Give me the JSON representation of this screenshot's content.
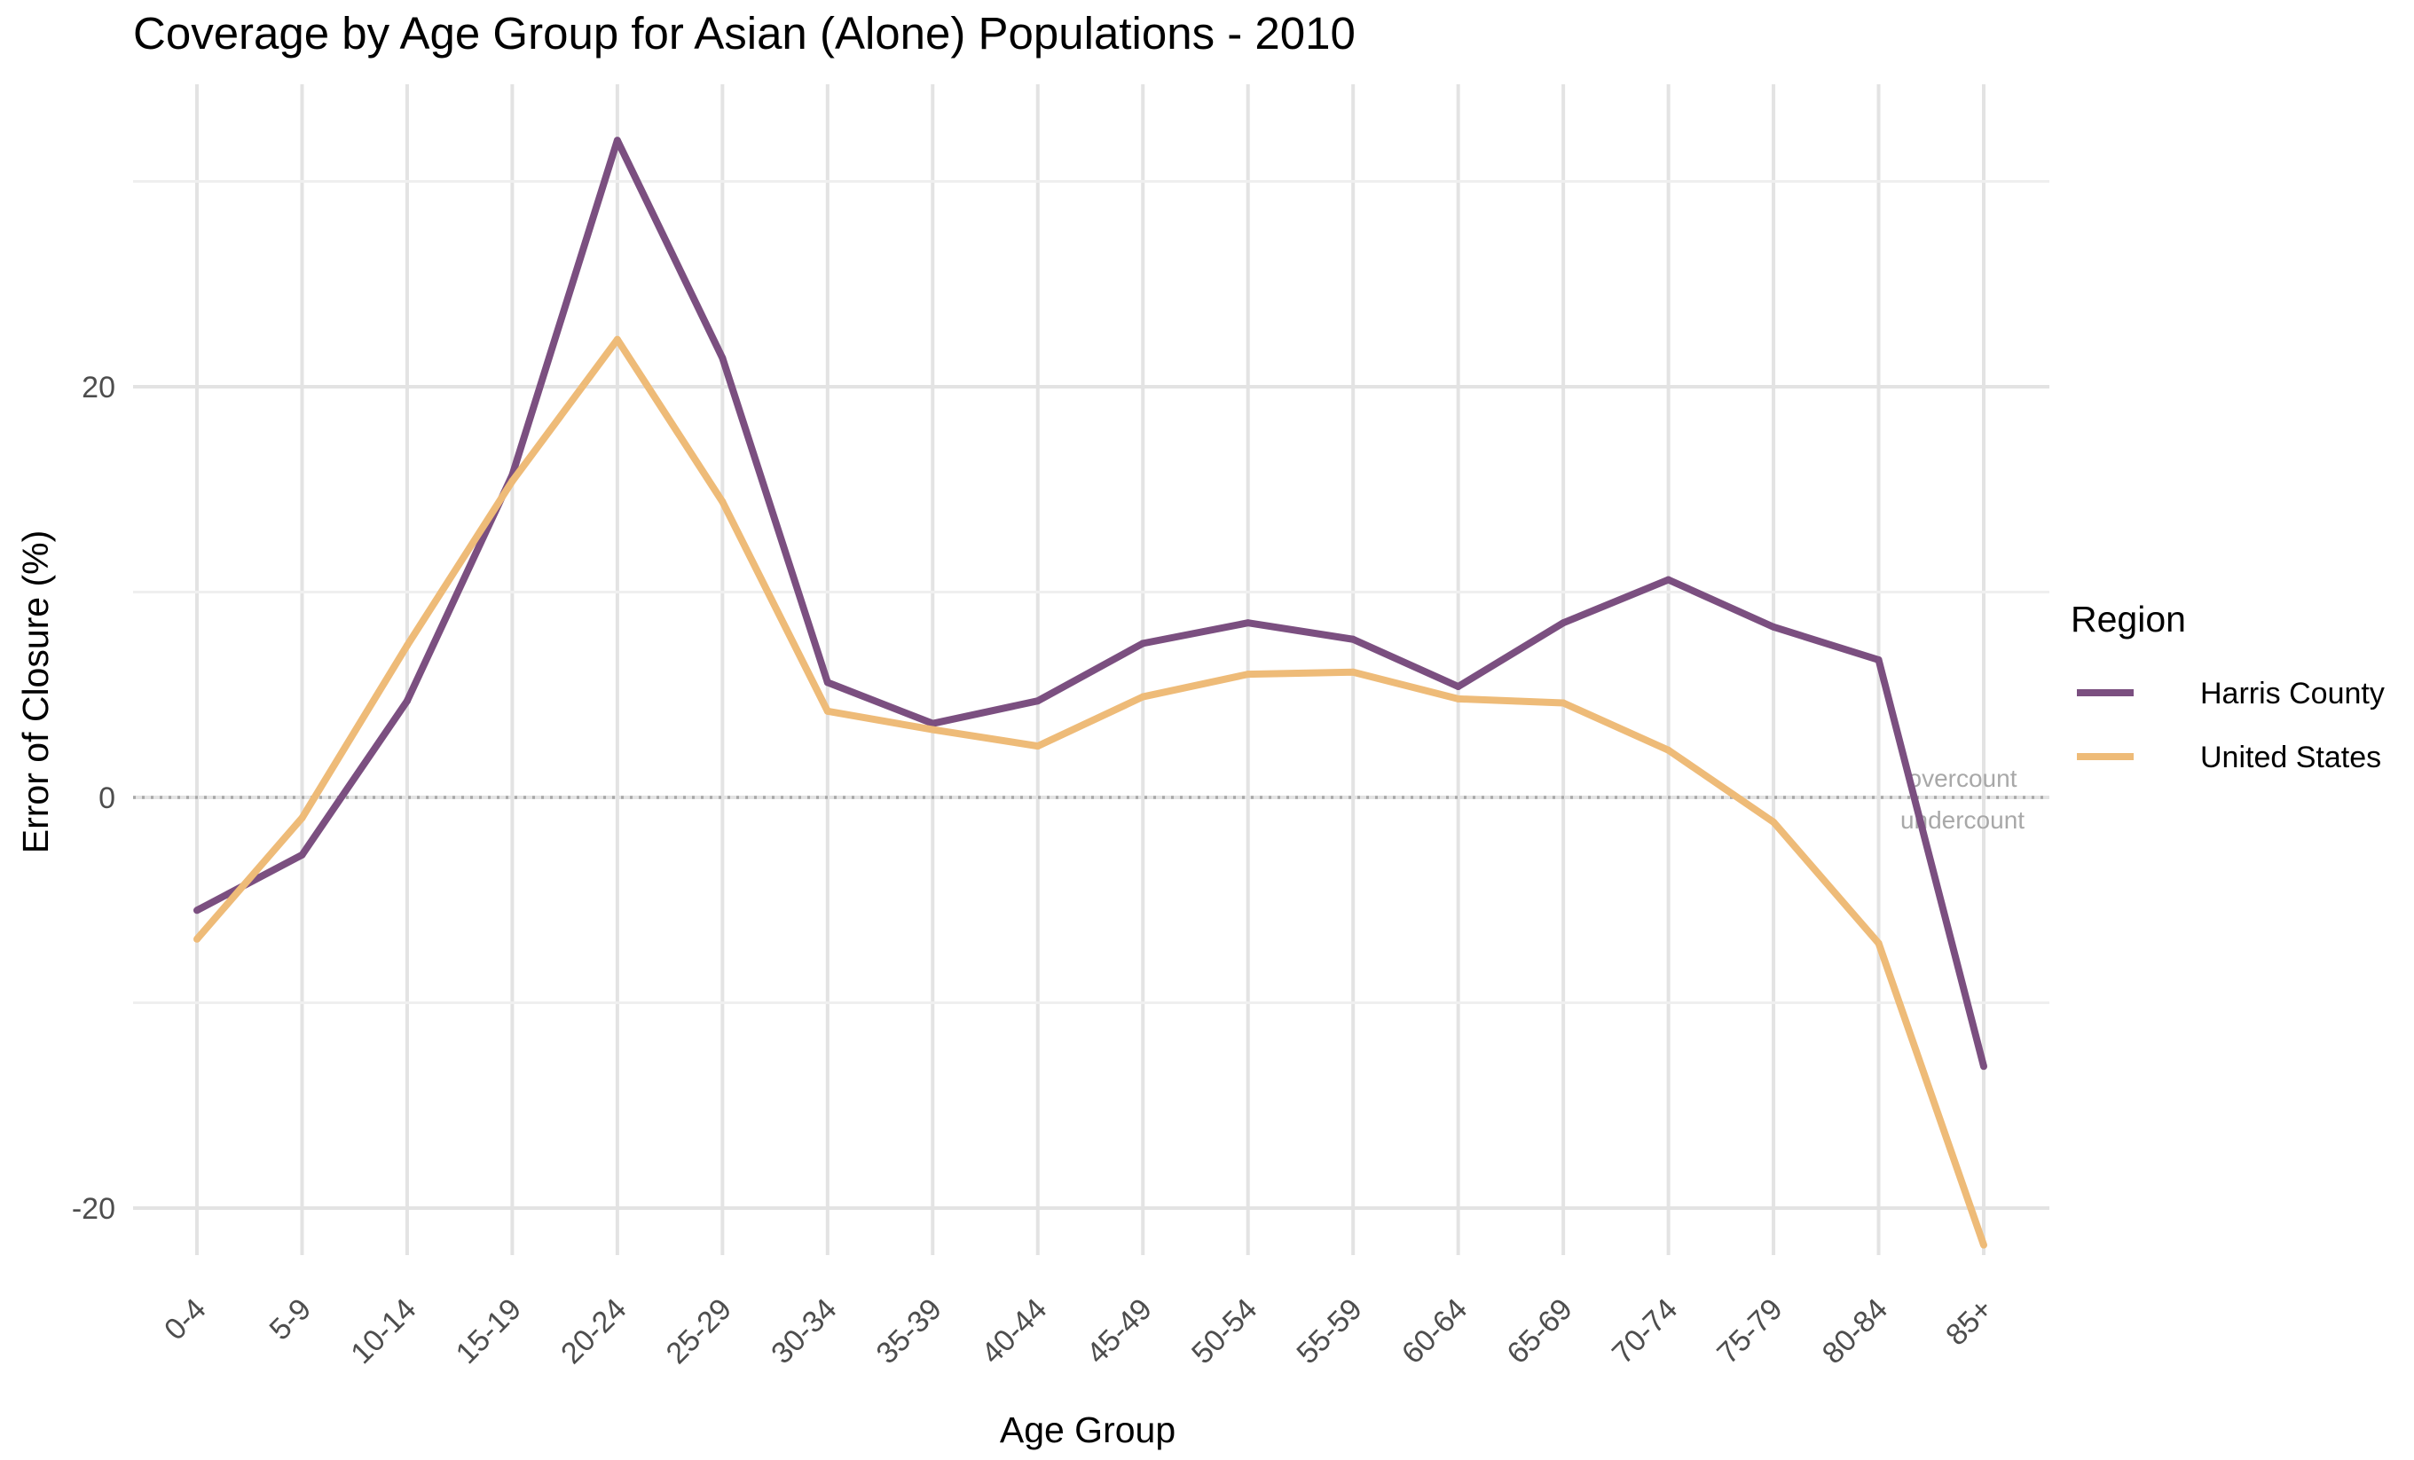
{
  "chart_data": {
    "type": "line",
    "title": "Coverage by Age Group for Asian (Alone) Populations - 2010",
    "xlabel": "Age Group",
    "ylabel": "Error of Closure (%)",
    "categories": [
      "0-4",
      "5-9",
      "10-14",
      "15-19",
      "20-24",
      "25-29",
      "30-34",
      "35-39",
      "40-44",
      "45-49",
      "50-54",
      "55-59",
      "60-64",
      "65-69",
      "70-74",
      "75-79",
      "80-84",
      "85+"
    ],
    "ylim": [
      -23,
      35
    ],
    "yticks": [
      -20,
      0,
      20
    ],
    "y_minor_gridlines": [
      -10,
      10,
      30
    ],
    "grid": true,
    "reference_line": {
      "y": 0,
      "label_above": "overcount",
      "label_below": "undercount",
      "color": "#a8a8a8"
    },
    "legend": {
      "title": "Region",
      "placement": "right"
    },
    "series": [
      {
        "name": "Harris County",
        "color": "#7b4f80",
        "values": [
          -5.5,
          -2.8,
          4.7,
          15.7,
          32.0,
          21.4,
          5.6,
          3.6,
          4.7,
          7.5,
          8.5,
          7.7,
          5.4,
          8.5,
          10.6,
          8.3,
          6.7,
          -13.1
        ]
      },
      {
        "name": "United States",
        "color": "#eebb78",
        "values": [
          -6.9,
          -1.0,
          7.4,
          15.4,
          22.3,
          14.4,
          4.2,
          3.3,
          2.5,
          4.9,
          6.0,
          6.1,
          4.8,
          4.6,
          2.3,
          -1.2,
          -7.1,
          -21.8
        ]
      }
    ]
  }
}
